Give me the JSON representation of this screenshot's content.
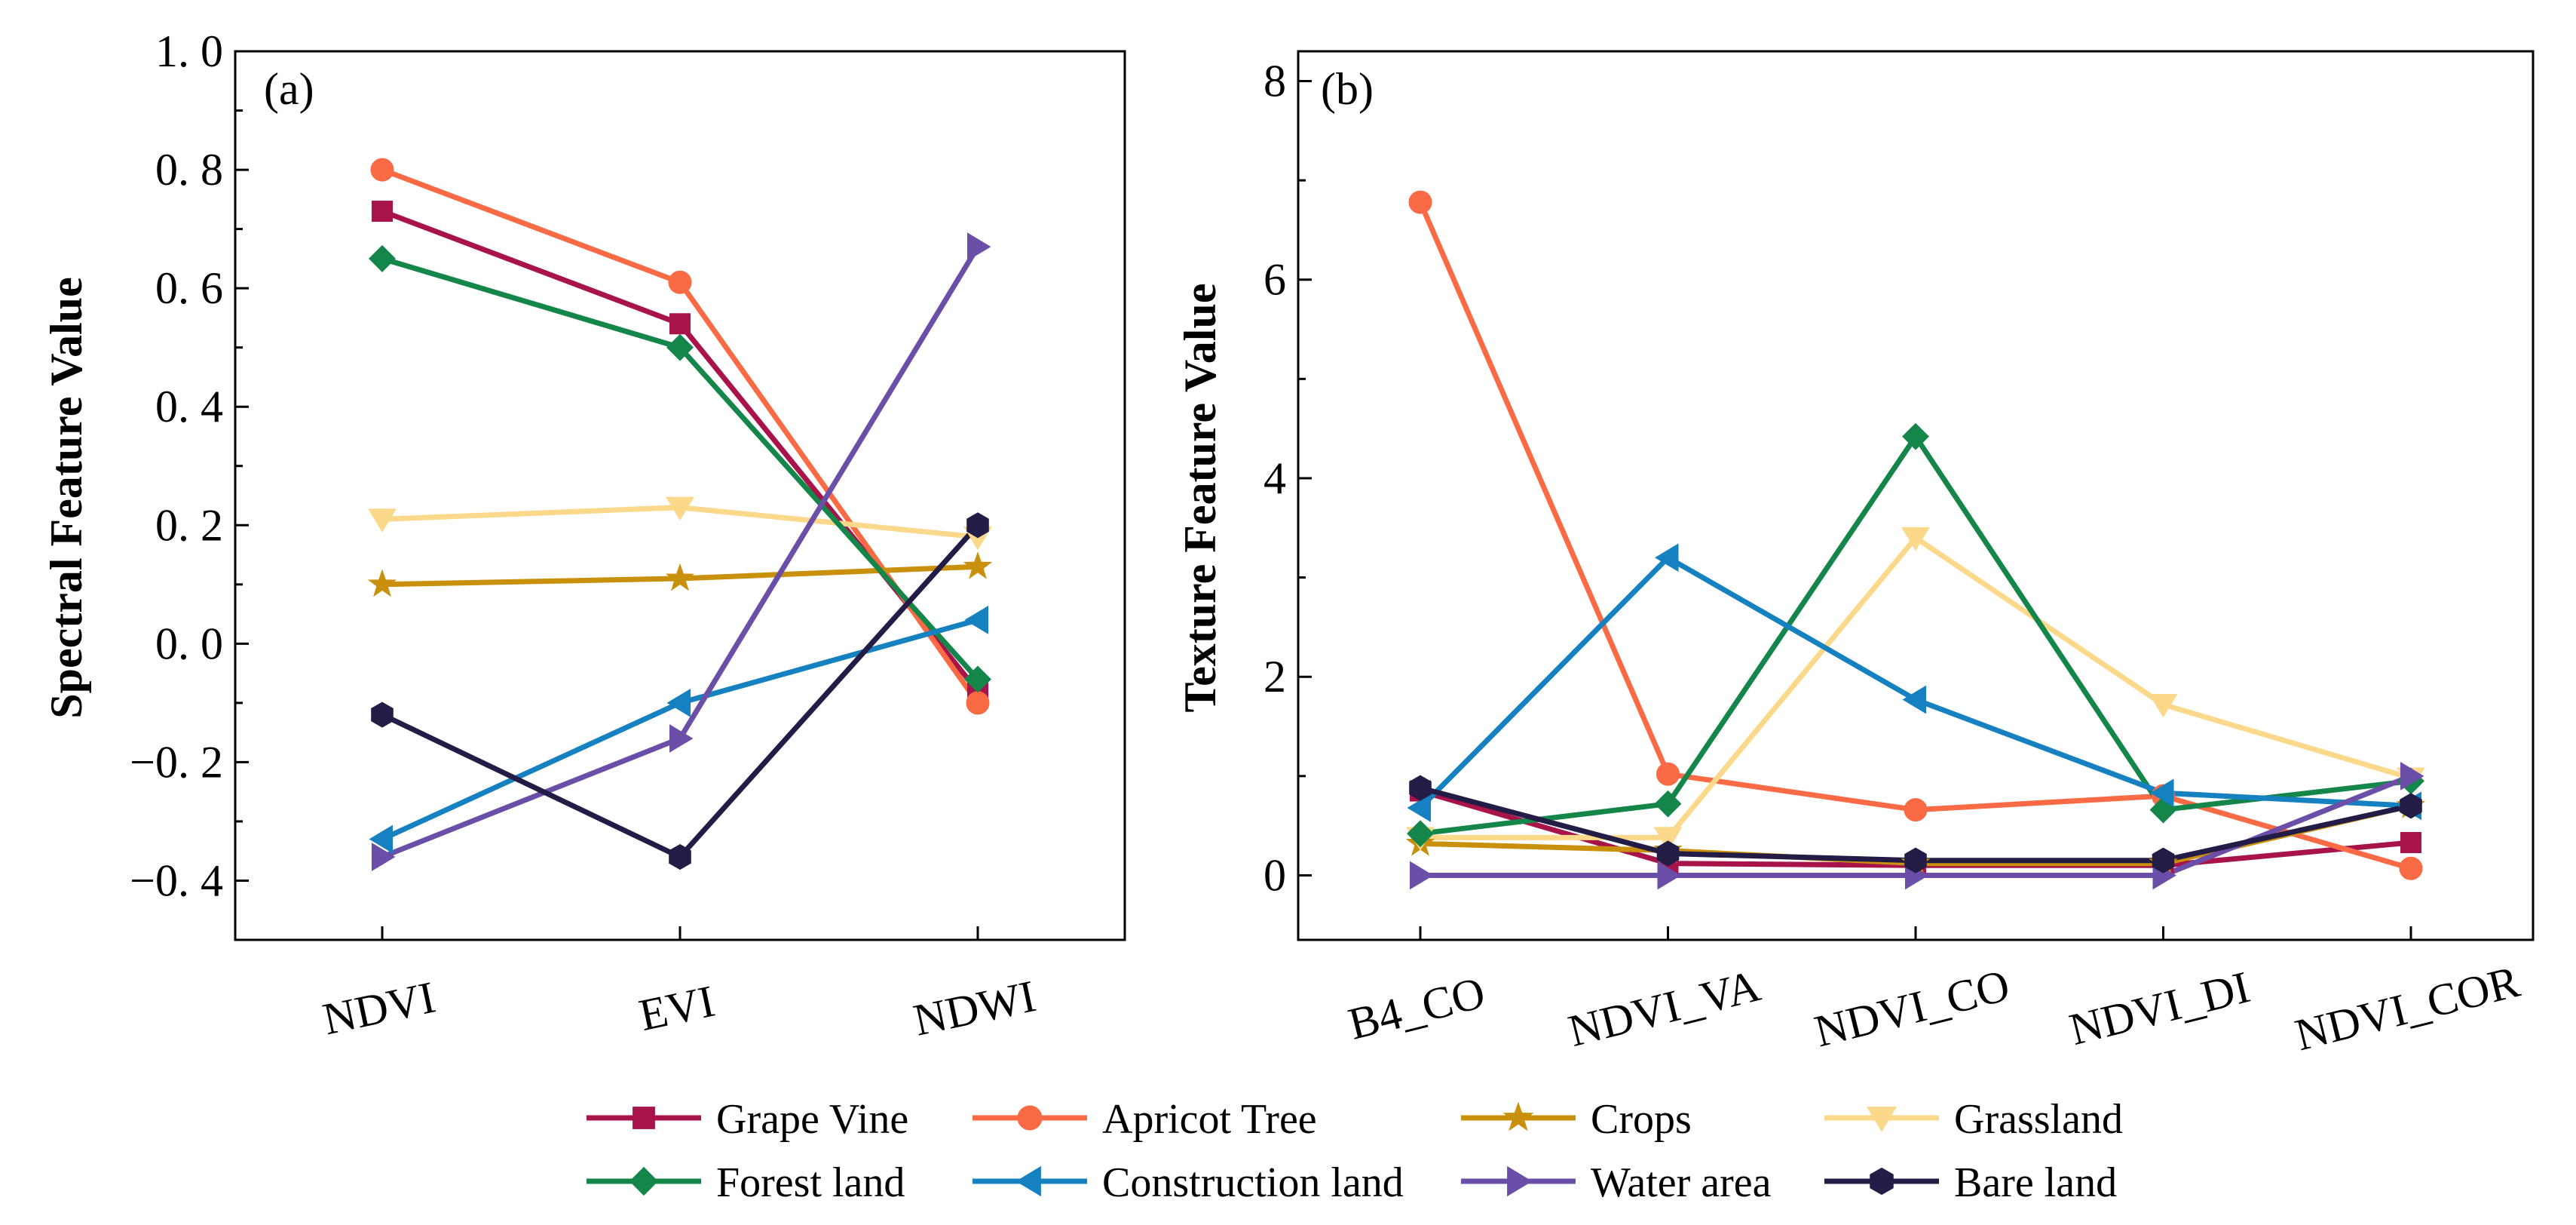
{
  "chart_data": [
    {
      "panel": "(a)",
      "type": "line",
      "ylabel": "Spectral Feature Value",
      "categories": [
        "NDVI",
        "EVI",
        "NDWI"
      ],
      "ylim": [
        -0.5,
        1.0
      ],
      "yticks": [
        1.0,
        0.8,
        0.6,
        0.4,
        0.2,
        0.0,
        -0.2,
        -0.4
      ],
      "ytick_labels": [
        "1. 0",
        "0. 8",
        "0. 6",
        "0. 4",
        "0. 2",
        "0. 0",
        "−0. 2",
        "−0. 4"
      ],
      "series": [
        {
          "name": "Grape Vine",
          "values": [
            0.73,
            0.54,
            -0.08
          ]
        },
        {
          "name": "Apricot Tree",
          "values": [
            0.8,
            0.61,
            -0.1
          ]
        },
        {
          "name": "Crops",
          "values": [
            0.1,
            0.11,
            0.13
          ]
        },
        {
          "name": "Grassland",
          "values": [
            0.21,
            0.23,
            0.18
          ]
        },
        {
          "name": "Forest land",
          "values": [
            0.65,
            0.5,
            -0.06
          ]
        },
        {
          "name": "Construction land",
          "values": [
            -0.33,
            -0.1,
            0.04
          ]
        },
        {
          "name": "Water area",
          "values": [
            -0.36,
            -0.16,
            0.67
          ]
        },
        {
          "name": "Bare land",
          "values": [
            -0.12,
            -0.36,
            0.2
          ]
        }
      ]
    },
    {
      "panel": "(b)",
      "type": "line",
      "ylabel": "Texture Feature Value",
      "categories": [
        "B4_CO",
        "NDVI_VA",
        "NDVI_CO",
        "NDVI_DI",
        "NDVI_COR"
      ],
      "ylim": [
        -0.65,
        8.3
      ],
      "yticks": [
        8,
        6,
        4,
        2,
        0
      ],
      "ytick_labels": [
        "8",
        "6",
        "4",
        "2",
        "0"
      ],
      "series": [
        {
          "name": "Grape Vine",
          "values": [
            0.85,
            0.12,
            0.1,
            0.1,
            0.33
          ]
        },
        {
          "name": "Apricot Tree",
          "values": [
            6.78,
            1.02,
            0.66,
            0.8,
            0.07
          ]
        },
        {
          "name": "Crops",
          "values": [
            0.32,
            0.25,
            0.12,
            0.12,
            0.7
          ]
        },
        {
          "name": "Grassland",
          "values": [
            0.38,
            0.38,
            3.4,
            1.72,
            0.98
          ]
        },
        {
          "name": "Forest land",
          "values": [
            0.42,
            0.72,
            4.42,
            0.66,
            0.95
          ]
        },
        {
          "name": "Construction land",
          "values": [
            0.68,
            3.2,
            1.77,
            0.83,
            0.7
          ]
        },
        {
          "name": "Water area",
          "values": [
            0.0,
            0.0,
            0.0,
            0.0,
            1.0
          ]
        },
        {
          "name": "Bare land",
          "values": [
            0.88,
            0.22,
            0.15,
            0.15,
            0.7
          ]
        }
      ]
    }
  ],
  "legend": [
    {
      "name": "Grape Vine",
      "color": "#A8134A",
      "marker": "square"
    },
    {
      "name": "Apricot Tree",
      "color": "#F96A45",
      "marker": "circle"
    },
    {
      "name": "Crops",
      "color": "#C8900C",
      "marker": "star"
    },
    {
      "name": "Grassland",
      "color": "#FCD88A",
      "marker": "triangle-down"
    },
    {
      "name": "Forest land",
      "color": "#14864A",
      "marker": "diamond"
    },
    {
      "name": "Construction land",
      "color": "#1581C0",
      "marker": "triangle-left"
    },
    {
      "name": "Water area",
      "color": "#6B4EA8",
      "marker": "triangle-right"
    },
    {
      "name": "Bare land",
      "color": "#231C46",
      "marker": "hexagon"
    }
  ]
}
